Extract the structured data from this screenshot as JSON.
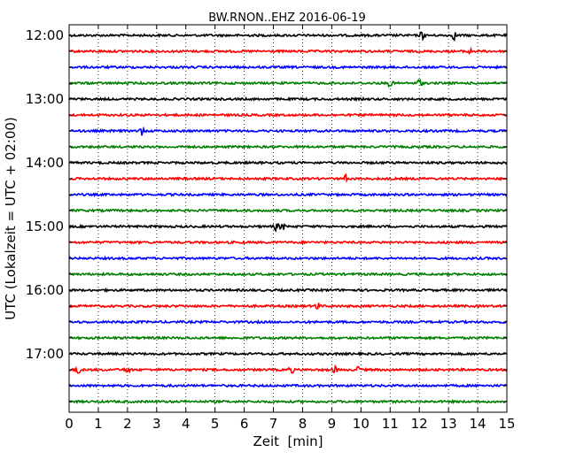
{
  "chart_data": {
    "type": "line",
    "title": "BW.RNON..EHZ 2016-06-19",
    "xlabel": "Zeit  [min]",
    "ylabel": "UTC (Lokalzeit = UTC + 02:00)",
    "xlim": [
      0,
      15
    ],
    "x_ticks": [
      "0",
      "1",
      "2",
      "3",
      "4",
      "5",
      "6",
      "7",
      "8",
      "9",
      "10",
      "11",
      "12",
      "13",
      "14",
      "15"
    ],
    "y_ticks": [
      "12:00",
      "13:00",
      "14:00",
      "15:00",
      "16:00",
      "17:00"
    ],
    "grid": "vertical dotted",
    "trace_colors": [
      "#000000",
      "#ff0000",
      "#0000ff",
      "#007f00"
    ],
    "traces": [
      {
        "start": "12:00",
        "events_min": [
          12.1,
          13.2
        ]
      },
      {
        "start": "12:15",
        "events_min": [
          13.7
        ]
      },
      {
        "start": "12:30",
        "events_min": []
      },
      {
        "start": "12:45",
        "events_min": [
          11.0,
          12.0
        ]
      },
      {
        "start": "13:00",
        "events_min": []
      },
      {
        "start": "13:15",
        "events_min": []
      },
      {
        "start": "13:30",
        "events_min": [
          2.5
        ]
      },
      {
        "start": "13:45",
        "events_min": []
      },
      {
        "start": "14:00",
        "events_min": []
      },
      {
        "start": "14:15",
        "events_min": [
          9.5
        ]
      },
      {
        "start": "14:30",
        "events_min": []
      },
      {
        "start": "14:45",
        "events_min": []
      },
      {
        "start": "15:00",
        "events_min": [
          7.1,
          7.3
        ]
      },
      {
        "start": "15:15",
        "events_min": []
      },
      {
        "start": "15:30",
        "events_min": []
      },
      {
        "start": "15:45",
        "events_min": []
      },
      {
        "start": "16:00",
        "events_min": []
      },
      {
        "start": "16:15",
        "events_min": [
          8.5
        ]
      },
      {
        "start": "16:30",
        "events_min": []
      },
      {
        "start": "16:45",
        "events_min": []
      },
      {
        "start": "17:00",
        "events_min": []
      },
      {
        "start": "17:15",
        "events_min": [
          0.3,
          2.0,
          7.6,
          9.1,
          9.9
        ]
      },
      {
        "start": "17:30",
        "events_min": []
      },
      {
        "start": "17:45",
        "events_min": []
      }
    ]
  }
}
